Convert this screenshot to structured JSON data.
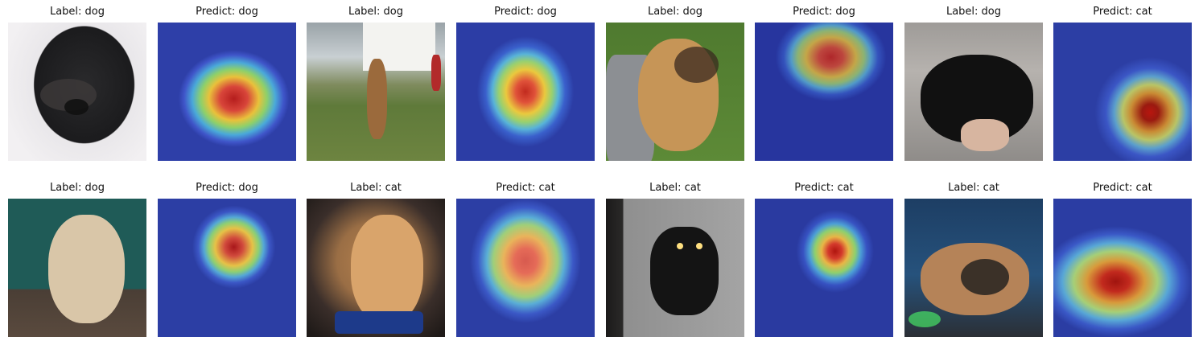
{
  "panels": [
    {
      "caption": "Label: dog",
      "kind": "photo",
      "subject": "black puppy"
    },
    {
      "caption": "Predict: dog",
      "kind": "heatmap"
    },
    {
      "caption": "Label: dog",
      "kind": "photo",
      "subject": "boxer on lawn"
    },
    {
      "caption": "Predict: dog",
      "kind": "heatmap"
    },
    {
      "caption": "Label: dog",
      "kind": "photo",
      "subject": "pug mix on grass"
    },
    {
      "caption": "Predict: dog",
      "kind": "heatmap"
    },
    {
      "caption": "Label: dog",
      "kind": "photo",
      "subject": "black shaggy dog"
    },
    {
      "caption": "Predict: cat",
      "kind": "heatmap"
    },
    {
      "caption": "Label: dog",
      "kind": "photo",
      "subject": "small fluffy dog"
    },
    {
      "caption": "Predict: dog",
      "kind": "heatmap"
    },
    {
      "caption": "Label: cat",
      "kind": "photo",
      "subject": "orange tabby cat"
    },
    {
      "caption": "Predict: cat",
      "kind": "heatmap"
    },
    {
      "caption": "Label: cat",
      "kind": "photo",
      "subject": "tuxedo cat held"
    },
    {
      "caption": "Predict: cat",
      "kind": "heatmap"
    },
    {
      "caption": "Label: cat",
      "kind": "photo",
      "subject": "calico cat"
    },
    {
      "caption": "Predict: cat",
      "kind": "heatmap"
    }
  ]
}
